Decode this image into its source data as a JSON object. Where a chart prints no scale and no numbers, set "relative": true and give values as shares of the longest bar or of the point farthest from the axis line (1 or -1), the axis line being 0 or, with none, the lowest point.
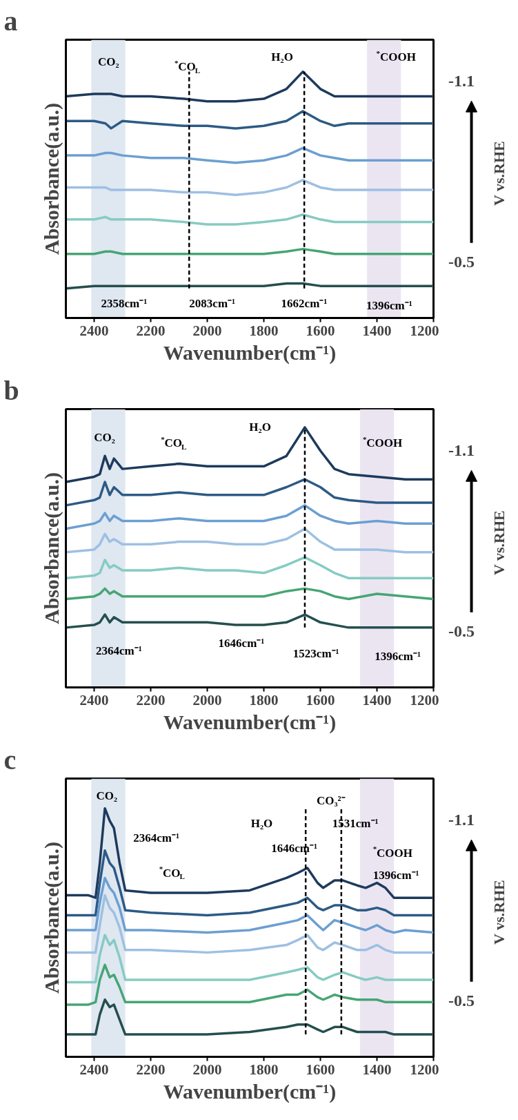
{
  "chart_data": [
    {
      "type": "line",
      "title": "a",
      "xlabel": "Wavenumber(cm⁻¹)",
      "ylabel": "Absorbance(a.u.)",
      "relative": true,
      "grid": false,
      "xlim": [
        2500,
        1200
      ],
      "xticks": [
        2400,
        2200,
        2000,
        1800,
        1600,
        1400,
        1200
      ],
      "x": [
        2500,
        2400,
        2360,
        2340,
        2300,
        2200,
        2083,
        2000,
        1900,
        1800,
        1720,
        1662,
        1600,
        1550,
        1500,
        1400,
        1300,
        1200
      ],
      "series": [
        {
          "color": "#1d3a5c",
          "values": [
            0.9,
            0.91,
            0.91,
            0.91,
            0.9,
            0.9,
            0.89,
            0.88,
            0.88,
            0.89,
            0.93,
            1.0,
            0.93,
            0.9,
            0.9,
            0.9,
            0.9,
            0.9
          ]
        },
        {
          "color": "#2c5a85",
          "values": [
            0.8,
            0.8,
            0.79,
            0.77,
            0.8,
            0.79,
            0.78,
            0.78,
            0.77,
            0.78,
            0.8,
            0.84,
            0.8,
            0.78,
            0.79,
            0.79,
            0.79,
            0.79
          ]
        },
        {
          "color": "#6b9fd1",
          "values": [
            0.66,
            0.66,
            0.67,
            0.67,
            0.66,
            0.65,
            0.65,
            0.64,
            0.63,
            0.64,
            0.66,
            0.69,
            0.66,
            0.65,
            0.64,
            0.64,
            0.64,
            0.64
          ]
        },
        {
          "color": "#9dc0e2",
          "values": [
            0.53,
            0.53,
            0.53,
            0.52,
            0.52,
            0.52,
            0.51,
            0.51,
            0.5,
            0.51,
            0.53,
            0.56,
            0.53,
            0.52,
            0.52,
            0.52,
            0.52,
            0.52
          ]
        },
        {
          "color": "#86cbc2",
          "values": [
            0.4,
            0.4,
            0.41,
            0.4,
            0.4,
            0.4,
            0.39,
            0.38,
            0.38,
            0.39,
            0.4,
            0.42,
            0.4,
            0.39,
            0.39,
            0.39,
            0.39,
            0.39
          ]
        },
        {
          "color": "#46a574",
          "values": [
            0.26,
            0.26,
            0.27,
            0.27,
            0.26,
            0.26,
            0.26,
            0.26,
            0.26,
            0.26,
            0.27,
            0.28,
            0.27,
            0.26,
            0.26,
            0.26,
            0.26,
            0.26
          ]
        },
        {
          "color": "#244f4e",
          "values": [
            0.12,
            0.13,
            0.13,
            0.13,
            0.13,
            0.13,
            0.13,
            0.13,
            0.13,
            0.13,
            0.14,
            0.14,
            0.13,
            0.13,
            0.13,
            0.13,
            0.13,
            0.13
          ]
        }
      ],
      "bands": [
        {
          "axis": "x",
          "from": 2410,
          "to": 2290,
          "color": "#dbe4ef"
        },
        {
          "axis": "x",
          "from": 1435,
          "to": 1315,
          "color": "#e9e2f1"
        }
      ],
      "ref_lines": [
        {
          "axis": "x",
          "value": 2064,
          "line_style": "dashed"
        },
        {
          "axis": "x",
          "value": 1657,
          "line_style": "dashed"
        }
      ],
      "annotations": [
        "CO₂",
        "$^{*}$CO$_{L}$",
        "H₂O",
        "$^{*}$COOH",
        "2358cm⁻¹",
        "2083cm⁻¹",
        "1662cm⁻¹",
        "1396cm⁻¹",
        "-1.1",
        "-0.5",
        "V vs.RHE"
      ]
    },
    {
      "type": "line",
      "title": "b",
      "xlabel": "Wavenumber(cm⁻¹)",
      "ylabel": "Absorbance(a.u.)",
      "relative": true,
      "grid": false,
      "xlim": [
        2500,
        1200
      ],
      "xticks": [
        2400,
        2200,
        2000,
        1800,
        1600,
        1400,
        1200
      ],
      "x": [
        2500,
        2400,
        2380,
        2362,
        2345,
        2330,
        2300,
        2200,
        2100,
        2000,
        1900,
        1800,
        1720,
        1655,
        1600,
        1550,
        1500,
        1400,
        1300,
        1200
      ],
      "series": [
        {
          "color": "#1d3a5c",
          "values": [
            0.79,
            0.81,
            0.82,
            0.89,
            0.84,
            0.88,
            0.84,
            0.85,
            0.86,
            0.85,
            0.85,
            0.85,
            0.89,
            1.0,
            0.91,
            0.84,
            0.82,
            0.81,
            0.8,
            0.8
          ]
        },
        {
          "color": "#2c5a85",
          "values": [
            0.7,
            0.72,
            0.73,
            0.79,
            0.74,
            0.77,
            0.74,
            0.74,
            0.75,
            0.74,
            0.74,
            0.74,
            0.77,
            0.8,
            0.77,
            0.73,
            0.72,
            0.71,
            0.71,
            0.71
          ]
        },
        {
          "color": "#6b9fd1",
          "values": [
            0.61,
            0.63,
            0.64,
            0.67,
            0.64,
            0.66,
            0.64,
            0.64,
            0.65,
            0.64,
            0.64,
            0.64,
            0.66,
            0.7,
            0.66,
            0.64,
            0.63,
            0.64,
            0.63,
            0.63
          ]
        },
        {
          "color": "#9dc0e2",
          "values": [
            0.52,
            0.53,
            0.55,
            0.59,
            0.56,
            0.57,
            0.55,
            0.55,
            0.56,
            0.56,
            0.55,
            0.55,
            0.57,
            0.61,
            0.56,
            0.53,
            0.53,
            0.53,
            0.52,
            0.52
          ]
        },
        {
          "color": "#86cbc2",
          "values": [
            0.42,
            0.43,
            0.44,
            0.49,
            0.46,
            0.47,
            0.45,
            0.45,
            0.46,
            0.45,
            0.45,
            0.44,
            0.47,
            0.5,
            0.47,
            0.44,
            0.42,
            0.42,
            0.42,
            0.42
          ]
        },
        {
          "color": "#46a574",
          "values": [
            0.34,
            0.35,
            0.36,
            0.38,
            0.36,
            0.37,
            0.35,
            0.35,
            0.35,
            0.35,
            0.35,
            0.35,
            0.37,
            0.38,
            0.37,
            0.35,
            0.34,
            0.36,
            0.35,
            0.34
          ]
        },
        {
          "color": "#244f4e",
          "values": [
            0.23,
            0.24,
            0.25,
            0.28,
            0.25,
            0.27,
            0.25,
            0.25,
            0.25,
            0.25,
            0.24,
            0.24,
            0.25,
            0.28,
            0.25,
            0.24,
            0.23,
            0.23,
            0.23,
            0.23
          ]
        }
      ],
      "bands": [
        {
          "axis": "x",
          "from": 2410,
          "to": 2290,
          "color": "#dbe4ef"
        },
        {
          "axis": "x",
          "from": 1460,
          "to": 1340,
          "color": "#e9e2f1"
        }
      ],
      "ref_lines": [
        {
          "axis": "x",
          "value": 1655,
          "line_style": "dashed"
        }
      ],
      "annotations": [
        "CO₂",
        "$^{*}$CO$_{L}$",
        "H₂O",
        "$^{*}$COOH",
        "2364cm⁻¹",
        "1646cm⁻¹",
        "1523cm⁻¹",
        "1396cm⁻¹",
        "-1.1",
        "-0.5",
        "V vs.RHE"
      ]
    },
    {
      "type": "line",
      "title": "c",
      "xlabel": "Wavenumber(cm⁻¹)",
      "ylabel": "Absorbance(a.u.)",
      "relative": true,
      "grid": false,
      "xlim": [
        2500,
        1200
      ],
      "xticks": [
        2400,
        2200,
        2000,
        1800,
        1600,
        1400,
        1200
      ],
      "x": [
        2500,
        2420,
        2395,
        2380,
        2362,
        2345,
        2330,
        2310,
        2290,
        2200,
        2000,
        1850,
        1720,
        1680,
        1646,
        1610,
        1590,
        1550,
        1520,
        1470,
        1440,
        1400,
        1370,
        1340,
        1300,
        1200
      ],
      "series": [
        {
          "color": "#1d3a5c",
          "values": [
            0.65,
            0.65,
            0.64,
            0.78,
            1.0,
            0.95,
            0.92,
            0.78,
            0.67,
            0.66,
            0.66,
            0.67,
            0.72,
            0.74,
            0.76,
            0.7,
            0.68,
            0.71,
            0.71,
            0.69,
            0.68,
            0.7,
            0.68,
            0.64,
            0.64,
            0.64
          ]
        },
        {
          "color": "#2c5a85",
          "values": [
            0.57,
            0.57,
            0.57,
            0.7,
            0.83,
            0.78,
            0.76,
            0.68,
            0.59,
            0.58,
            0.57,
            0.58,
            0.61,
            0.62,
            0.64,
            0.6,
            0.59,
            0.61,
            0.61,
            0.59,
            0.59,
            0.6,
            0.59,
            0.57,
            0.57,
            0.57
          ]
        },
        {
          "color": "#6b9fd1",
          "values": [
            0.51,
            0.51,
            0.51,
            0.62,
            0.72,
            0.68,
            0.66,
            0.6,
            0.51,
            0.51,
            0.5,
            0.51,
            0.54,
            0.55,
            0.57,
            0.53,
            0.51,
            0.55,
            0.54,
            0.52,
            0.51,
            0.53,
            0.51,
            0.5,
            0.51,
            0.5
          ]
        },
        {
          "color": "#9dc0e2",
          "values": [
            0.42,
            0.42,
            0.42,
            0.53,
            0.65,
            0.6,
            0.58,
            0.52,
            0.43,
            0.43,
            0.42,
            0.43,
            0.45,
            0.47,
            0.49,
            0.44,
            0.43,
            0.46,
            0.45,
            0.43,
            0.43,
            0.45,
            0.43,
            0.42,
            0.42,
            0.42
          ]
        },
        {
          "color": "#86cbc2",
          "values": [
            0.3,
            0.3,
            0.3,
            0.41,
            0.49,
            0.45,
            0.47,
            0.4,
            0.31,
            0.31,
            0.31,
            0.31,
            0.34,
            0.35,
            0.36,
            0.32,
            0.31,
            0.33,
            0.34,
            0.32,
            0.31,
            0.32,
            0.31,
            0.31,
            0.31,
            0.31
          ]
        },
        {
          "color": "#46a574",
          "values": [
            0.21,
            0.21,
            0.22,
            0.31,
            0.37,
            0.32,
            0.33,
            0.28,
            0.22,
            0.22,
            0.22,
            0.22,
            0.25,
            0.25,
            0.27,
            0.24,
            0.23,
            0.25,
            0.24,
            0.23,
            0.23,
            0.23,
            0.22,
            0.22,
            0.22,
            0.22
          ]
        },
        {
          "color": "#244f4e",
          "values": [
            0.09,
            0.09,
            0.09,
            0.17,
            0.23,
            0.2,
            0.21,
            0.15,
            0.09,
            0.09,
            0.09,
            0.1,
            0.12,
            0.13,
            0.13,
            0.11,
            0.1,
            0.12,
            0.12,
            0.1,
            0.1,
            0.1,
            0.1,
            0.09,
            0.09,
            0.09
          ]
        }
      ],
      "bands": [
        {
          "axis": "x",
          "from": 2410,
          "to": 2290,
          "color": "#dbe4ef"
        },
        {
          "axis": "x",
          "from": 1460,
          "to": 1340,
          "color": "#e9e2f1"
        }
      ],
      "ref_lines": [
        {
          "axis": "x",
          "value": 1652,
          "line_style": "dashed"
        },
        {
          "axis": "x",
          "value": 1526,
          "line_style": "dashed"
        }
      ],
      "annotations": [
        "CO₂",
        "2364cm⁻¹",
        "$^{*}$CO$_{L}$",
        "H₂O",
        "1646cm⁻¹",
        "CO₃²⁻",
        "1531cm⁻¹",
        "$^{*}$COOH",
        "1396cm⁻¹",
        "-1.1",
        "-0.5",
        "V vs.RHE"
      ]
    }
  ]
}
